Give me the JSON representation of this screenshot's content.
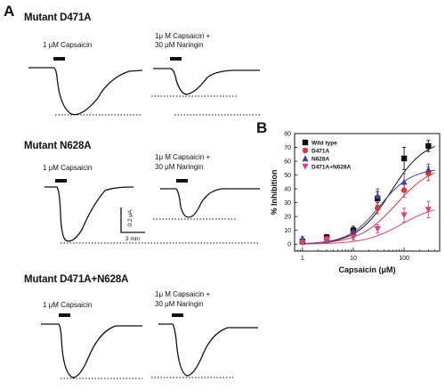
{
  "panel_a": {
    "letter": "A",
    "rows": [
      {
        "title": "Mutant D471A",
        "left_condition": "1 μM Capsaicin",
        "right_condition_line1": "1μ M Capsaicin +",
        "right_condition_line2": "30 μM Naringin"
      },
      {
        "title": "Mutant N628A",
        "left_condition": "1 μM Capsaicin",
        "right_condition_line1": "1μ M Capsaicin +",
        "right_condition_line2": "30 μM Naringin"
      },
      {
        "title": "Mutant D471A+N628A",
        "left_condition": "1 μM Capsaicin",
        "right_condition_line1": "1μ M Capsaicin +",
        "right_condition_line2": "30 μM Naringin"
      }
    ],
    "scale_bar": {
      "current_label": "0.2 μA",
      "time_label": "3 min"
    }
  },
  "panel_b": {
    "letter": "B",
    "chart_data": {
      "type": "scatter",
      "xlabel": "Capsaicin (μM)",
      "ylabel": "% Inhibition",
      "x_scale": "log",
      "xlim": [
        0.7,
        500
      ],
      "ylim": [
        -5,
        80
      ],
      "x_ticks": [
        1,
        10,
        100
      ],
      "x_tick_labels": [
        "1",
        "10",
        "100"
      ],
      "y_ticks": [
        0,
        10,
        20,
        30,
        40,
        50,
        60,
        70,
        80
      ],
      "y_tick_labels": [
        "0",
        "10",
        "20",
        "30",
        "40",
        "50",
        "60",
        "70",
        "80"
      ],
      "grid": false,
      "legend_position": "top-left",
      "x": [
        1,
        3,
        10,
        30,
        100,
        300
      ],
      "series": [
        {
          "name": "Wild type",
          "marker": "square",
          "color": "#111111",
          "values": [
            2,
            5,
            10,
            33,
            62,
            71
          ],
          "errors": [
            1.5,
            2,
            3,
            5,
            8,
            4
          ]
        },
        {
          "name": "D471A",
          "marker": "circle",
          "color": "#e0383c",
          "values": [
            2,
            4,
            8,
            26,
            39,
            51
          ],
          "errors": [
            1.5,
            2,
            2.5,
            4,
            5,
            5
          ]
        },
        {
          "name": "N628A",
          "marker": "triangle-up",
          "color": "#4b3fa0",
          "values": [
            4,
            3,
            9,
            35,
            45,
            54
          ],
          "errors": [
            1.5,
            1.5,
            3,
            5,
            6,
            4
          ]
        },
        {
          "name": "D471A+N628A",
          "marker": "triangle-down",
          "color": "#e0407c",
          "values": [
            1,
            3,
            5,
            11,
            21,
            25
          ],
          "errors": [
            1,
            1.5,
            2,
            3,
            5,
            6
          ]
        }
      ]
    }
  }
}
